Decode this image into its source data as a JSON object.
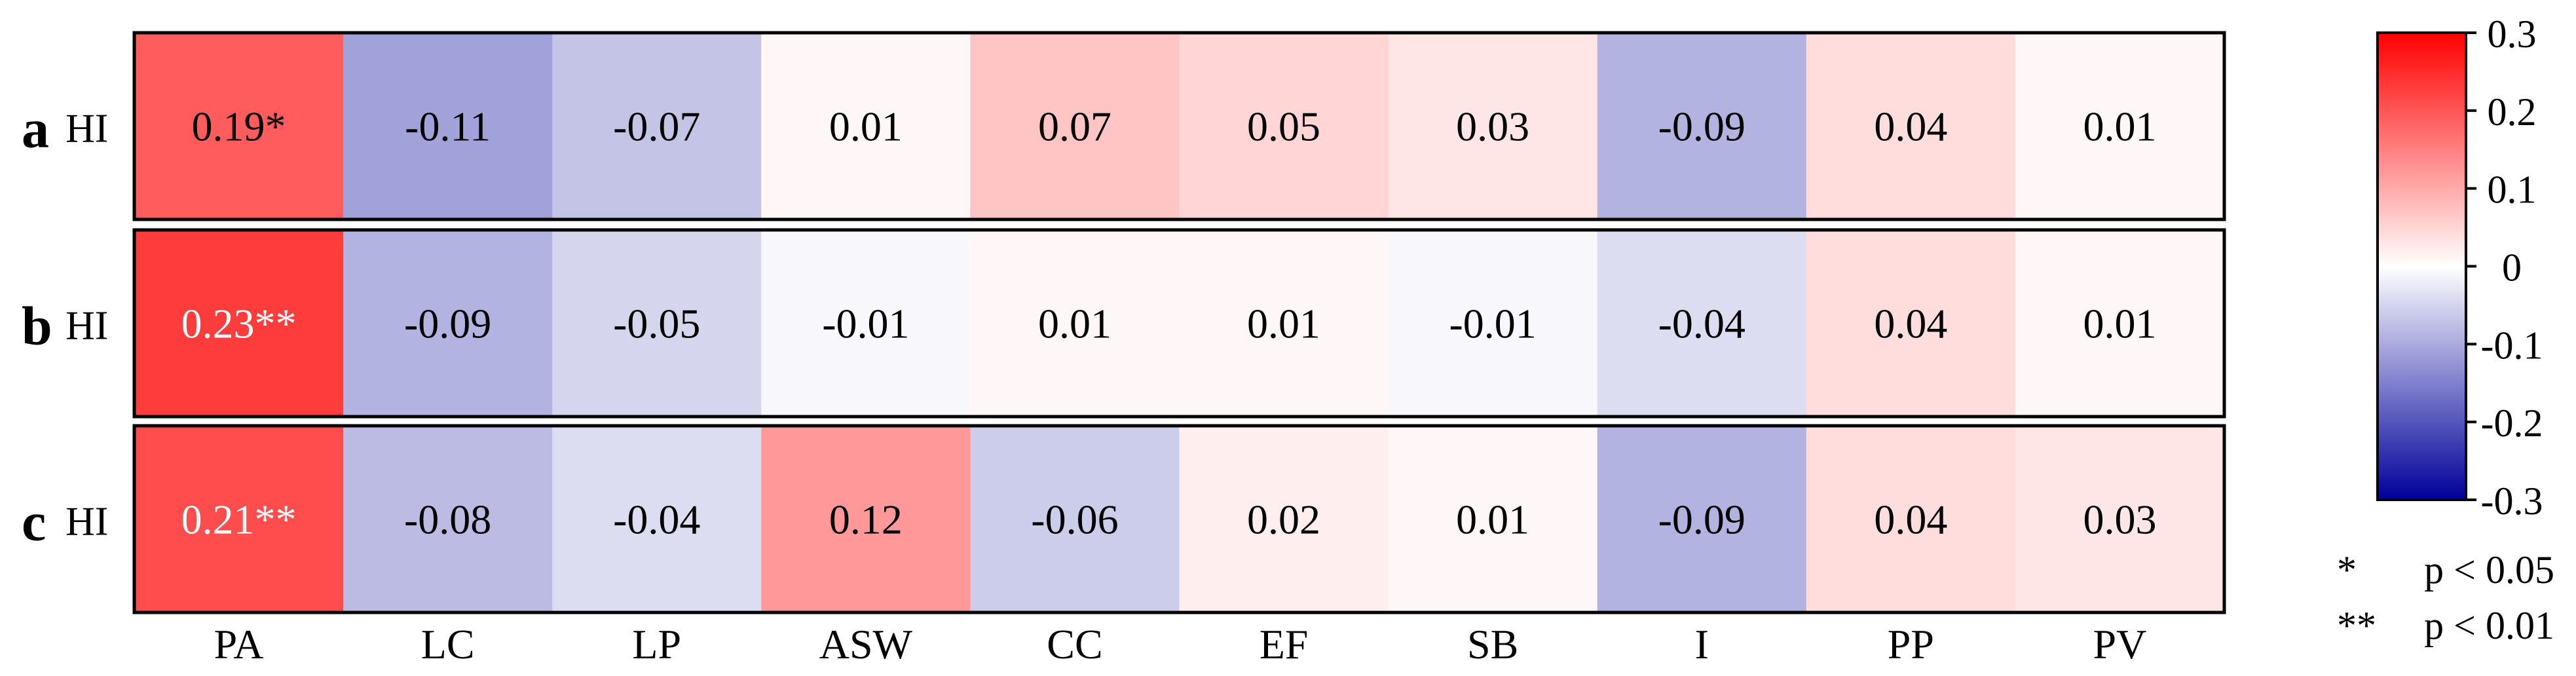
{
  "chart_data": {
    "type": "heatmap",
    "panels": [
      {
        "label": "a",
        "row_label": "HI",
        "values": [
          0.19,
          -0.11,
          -0.07,
          0.01,
          0.07,
          0.05,
          0.03,
          -0.09,
          0.04,
          0.01
        ],
        "texts": [
          "0.19*",
          "-0.11",
          "-0.07",
          "0.01",
          "0.07",
          "0.05",
          "0.03",
          "-0.09",
          "0.04",
          "0.01"
        ]
      },
      {
        "label": "b",
        "row_label": "HI",
        "values": [
          0.23,
          -0.09,
          -0.05,
          -0.01,
          0.01,
          0.01,
          -0.01,
          -0.04,
          0.04,
          0.01
        ],
        "texts": [
          "0.23**",
          "-0.09",
          "-0.05",
          "-0.01",
          "0.01",
          "0.01",
          "-0.01",
          "-0.04",
          "0.04",
          "0.01"
        ]
      },
      {
        "label": "c",
        "row_label": "HI",
        "values": [
          0.21,
          -0.08,
          -0.04,
          0.12,
          -0.06,
          0.02,
          0.01,
          -0.09,
          0.04,
          0.03
        ],
        "texts": [
          "0.21**",
          "-0.08",
          "-0.04",
          "0.12",
          "-0.06",
          "0.02",
          "0.01",
          "-0.09",
          "0.04",
          "0.03"
        ]
      }
    ],
    "categories": [
      "PA",
      "LC",
      "LP",
      "ASW",
      "CC",
      "EF",
      "SB",
      "I",
      "PP",
      "PV"
    ],
    "colorbar": {
      "min": -0.3,
      "max": 0.3,
      "ticks": [
        "0.3",
        "0.2",
        "0.1",
        "0",
        "-0.1",
        "-0.2",
        "-0.3"
      ],
      "colors": {
        "low": "#00009a",
        "mid": "#ffffff",
        "high": "#ff0000"
      }
    },
    "significance_legend": [
      {
        "symbol": "*",
        "text": "p < 0.05"
      },
      {
        "symbol": "**",
        "text": "p < 0.01"
      }
    ]
  }
}
